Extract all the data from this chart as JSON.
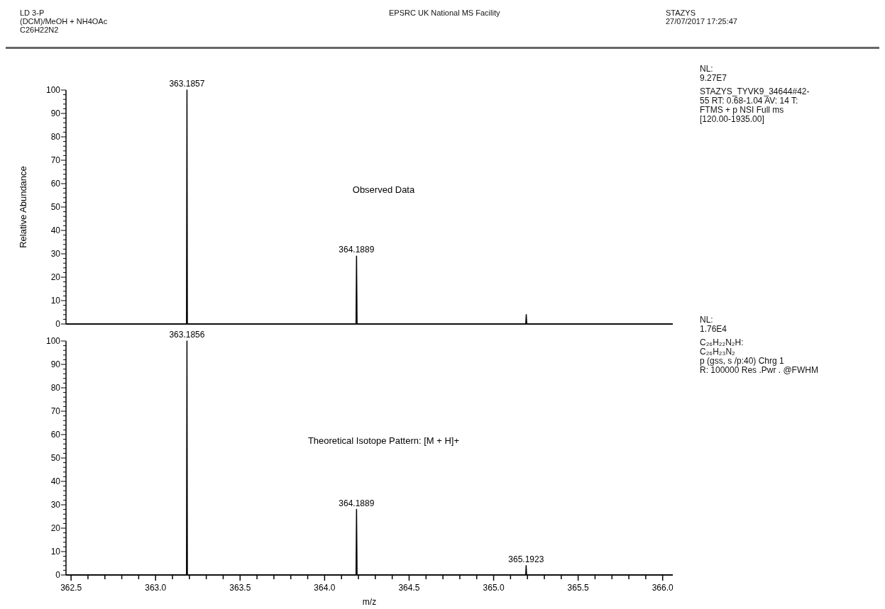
{
  "chart_data": [
    {
      "type": "other",
      "annotations": [
        "LD 3-P\n(DCM)/MeOH + NH4OAc\nC26H22N2",
        "EPSRC UK National MS Facility",
        "STAZYS\n27/07/2017 17:25:47"
      ]
    },
    {
      "type": "line",
      "title": "Observed Data",
      "ylabel": "Relative Abundance",
      "tick_labels": "y",
      "xlim": [
        362.47,
        366.06
      ],
      "ylim": [
        0,
        100
      ],
      "yticks": [
        0,
        {
          "value": 2,
          "label": null
        },
        {
          "value": 4,
          "label": null
        },
        {
          "value": 6,
          "label": null
        },
        {
          "value": 8,
          "label": null
        },
        10,
        {
          "value": 12,
          "label": null
        },
        {
          "value": 14,
          "label": null
        },
        {
          "value": 16,
          "label": null
        },
        {
          "value": 18,
          "label": null
        },
        20,
        {
          "value": 22,
          "label": null
        },
        {
          "value": 24,
          "label": null
        },
        {
          "value": 26,
          "label": null
        },
        {
          "value": 28,
          "label": null
        },
        30,
        {
          "value": 32,
          "label": null
        },
        {
          "value": 34,
          "label": null
        },
        {
          "value": 36,
          "label": null
        },
        {
          "value": 38,
          "label": null
        },
        40,
        {
          "value": 42,
          "label": null
        },
        {
          "value": 44,
          "label": null
        },
        {
          "value": 46,
          "label": null
        },
        {
          "value": 48,
          "label": null
        },
        50,
        {
          "value": 52,
          "label": null
        },
        {
          "value": 54,
          "label": null
        },
        {
          "value": 56,
          "label": null
        },
        {
          "value": 58,
          "label": null
        },
        60,
        {
          "value": 62,
          "label": null
        },
        {
          "value": 64,
          "label": null
        },
        {
          "value": 66,
          "label": null
        },
        {
          "value": 68,
          "label": null
        },
        70,
        {
          "value": 72,
          "label": null
        },
        {
          "value": 74,
          "label": null
        },
        {
          "value": 76,
          "label": null
        },
        {
          "value": 78,
          "label": null
        },
        80,
        {
          "value": 82,
          "label": null
        },
        {
          "value": 84,
          "label": null
        },
        {
          "value": 86,
          "label": null
        },
        {
          "value": 88,
          "label": null
        },
        90,
        {
          "value": 92,
          "label": null
        },
        {
          "value": 94,
          "label": null
        },
        {
          "value": 96,
          "label": null
        },
        {
          "value": 98,
          "label": null
        },
        100
      ],
      "series": [
        {
          "color": "#000000",
          "x": [
            362.47,
            363.183,
            363.1857,
            363.188,
            364.186,
            364.1889,
            364.192,
            365.19,
            365.193,
            365.196,
            366.06
          ],
          "values": [
            0,
            0,
            100,
            0,
            0,
            29,
            0,
            0,
            4,
            0,
            0
          ]
        }
      ],
      "annotations": [
        {
          "text": "363.1857",
          "x": 363.1857,
          "y": 100
        },
        {
          "text": "364.1889",
          "x": 364.1889,
          "y": 29
        },
        "NL:\n9.27E7",
        "STAZYS_TYVK9_34644#42-\n55  RT: 0.68-1.04  AV: 14 T:\nFTMS + p NSI Full ms\n[120.00-1935.00]"
      ]
    },
    {
      "type": "line",
      "title": "Theoretical Isotope Pattern:  [M + H]+",
      "xlabel": "m/z",
      "xlim": [
        362.47,
        366.06
      ],
      "ylim": [
        0,
        100
      ],
      "xticks": [
        362.5,
        {
          "value": 362.6,
          "label": null
        },
        {
          "value": 362.7,
          "label": null
        },
        {
          "value": 362.8,
          "label": null
        },
        {
          "value": 362.9,
          "label": null
        },
        {
          "value": 363,
          "label": "363.0"
        },
        {
          "value": 363.1,
          "label": null
        },
        {
          "value": 363.2,
          "label": null
        },
        {
          "value": 363.3,
          "label": null
        },
        {
          "value": 363.4,
          "label": null
        },
        363.5,
        {
          "value": 363.6,
          "label": null
        },
        {
          "value": 363.7,
          "label": null
        },
        {
          "value": 363.8,
          "label": null
        },
        {
          "value": 363.9,
          "label": null
        },
        {
          "value": 364,
          "label": "364.0"
        },
        {
          "value": 364.1,
          "label": null
        },
        {
          "value": 364.2,
          "label": null
        },
        {
          "value": 364.3,
          "label": null
        },
        {
          "value": 364.4,
          "label": null
        },
        364.5,
        {
          "value": 364.6,
          "label": null
        },
        {
          "value": 364.7,
          "label": null
        },
        {
          "value": 364.8,
          "label": null
        },
        {
          "value": 364.9,
          "label": null
        },
        {
          "value": 365,
          "label": "365.0"
        },
        {
          "value": 365.1,
          "label": null
        },
        {
          "value": 365.2,
          "label": null
        },
        {
          "value": 365.3,
          "label": null
        },
        {
          "value": 365.4,
          "label": null
        },
        365.5,
        {
          "value": 365.6,
          "label": null
        },
        {
          "value": 365.7,
          "label": null
        },
        {
          "value": 365.8,
          "label": null
        },
        {
          "value": 365.9,
          "label": null
        },
        {
          "value": 366,
          "label": "366.0"
        }
      ],
      "yticks": [
        0,
        {
          "value": 2,
          "label": null
        },
        {
          "value": 4,
          "label": null
        },
        {
          "value": 6,
          "label": null
        },
        {
          "value": 8,
          "label": null
        },
        10,
        {
          "value": 12,
          "label": null
        },
        {
          "value": 14,
          "label": null
        },
        {
          "value": 16,
          "label": null
        },
        {
          "value": 18,
          "label": null
        },
        20,
        {
          "value": 22,
          "label": null
        },
        {
          "value": 24,
          "label": null
        },
        {
          "value": 26,
          "label": null
        },
        {
          "value": 28,
          "label": null
        },
        30,
        {
          "value": 32,
          "label": null
        },
        {
          "value": 34,
          "label": null
        },
        {
          "value": 36,
          "label": null
        },
        {
          "value": 38,
          "label": null
        },
        40,
        {
          "value": 42,
          "label": null
        },
        {
          "value": 44,
          "label": null
        },
        {
          "value": 46,
          "label": null
        },
        {
          "value": 48,
          "label": null
        },
        50,
        {
          "value": 52,
          "label": null
        },
        {
          "value": 54,
          "label": null
        },
        {
          "value": 56,
          "label": null
        },
        {
          "value": 58,
          "label": null
        },
        60,
        {
          "value": 62,
          "label": null
        },
        {
          "value": 64,
          "label": null
        },
        {
          "value": 66,
          "label": null
        },
        {
          "value": 68,
          "label": null
        },
        70,
        {
          "value": 72,
          "label": null
        },
        {
          "value": 74,
          "label": null
        },
        {
          "value": 76,
          "label": null
        },
        {
          "value": 78,
          "label": null
        },
        80,
        {
          "value": 82,
          "label": null
        },
        {
          "value": 84,
          "label": null
        },
        {
          "value": 86,
          "label": null
        },
        {
          "value": 88,
          "label": null
        },
        90,
        {
          "value": 92,
          "label": null
        },
        {
          "value": 94,
          "label": null
        },
        {
          "value": 96,
          "label": null
        },
        {
          "value": 98,
          "label": null
        },
        100
      ],
      "series": [
        {
          "color": "#000000",
          "x": [
            362.47,
            363.183,
            363.1856,
            363.188,
            364.186,
            364.1889,
            364.192,
            365.19,
            365.1923,
            365.195,
            366.06
          ],
          "values": [
            0,
            0,
            100,
            0,
            0,
            28,
            0,
            0,
            4,
            0,
            0
          ]
        }
      ],
      "annotations": [
        {
          "text": "363.1856",
          "x": 363.1856,
          "y": 100
        },
        {
          "text": "364.1889",
          "x": 364.1889,
          "y": 28
        },
        {
          "text": "365.1923",
          "x": 365.1923,
          "y": 4
        },
        "NL:\n1.76E4",
        "C₂₆H₂₂N₂H:\nC₂₆H₂₃N₂\np (gss, s /p:40) Chrg 1\nR: 100000 Res .Pwr . @FWHM"
      ]
    }
  ]
}
